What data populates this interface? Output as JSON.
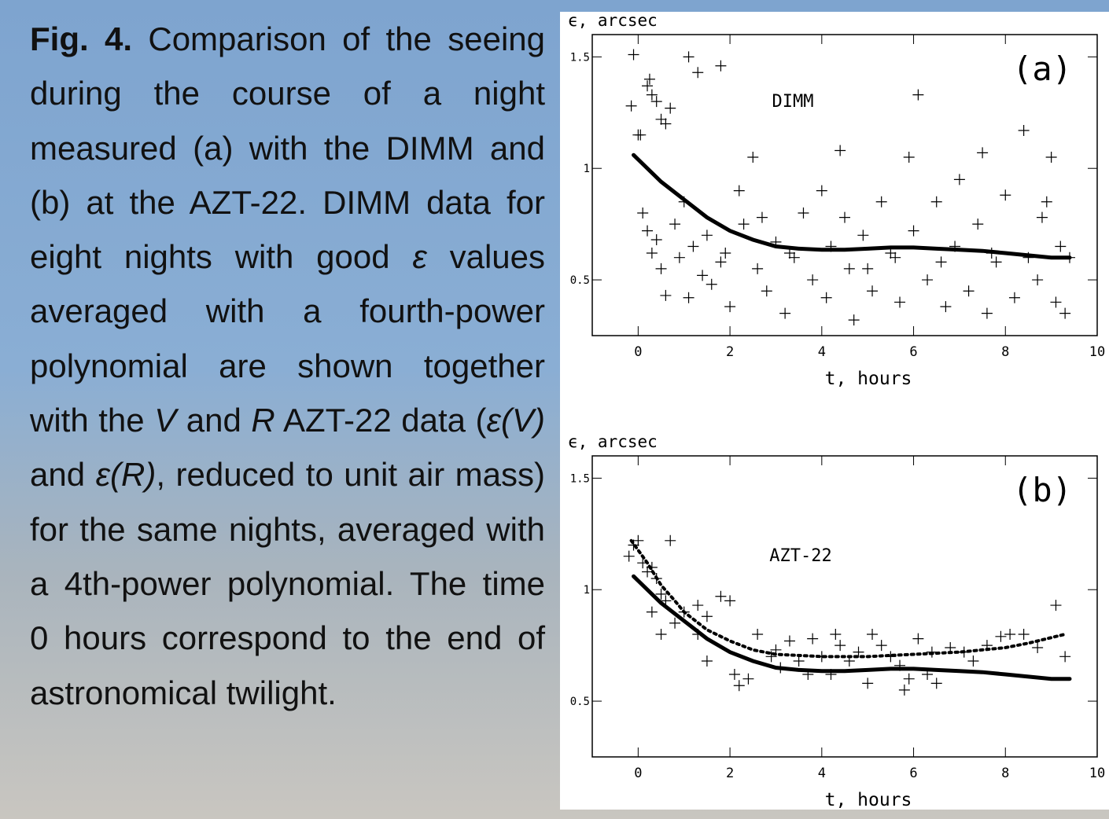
{
  "caption": [
    "Fig. 4.",
    " Comparison of the seeing during the course of a night measured (a) with the DIMM and (b) at the AZT-22. DIMM data for eight nights with good ",
    "ε",
    " values averaged with a fourth-power polynomial are shown together with the ",
    "V",
    " and ",
    "R",
    " AZT-22 data (",
    "ε(V)",
    " and ",
    "ε(R)",
    ", reduced to unit air mass) for the same nights, averaged with a 4th-power polynomial. The time 0 hours correspond to the end of astronomical twilight."
  ],
  "chart_data": [
    {
      "type": "scatter",
      "ylabel": "ϵ, arcsec",
      "xlabel": "t, hours",
      "panel_label": "(a)",
      "annotation": "DIMM",
      "xlim": [
        -1,
        10
      ],
      "ylim": [
        0.25,
        1.6
      ],
      "xticks": [
        0,
        2,
        4,
        6,
        8,
        10
      ],
      "yticks": [
        0.5,
        1,
        1.5
      ],
      "series": [
        {
          "marker": "plus",
          "color": "#000",
          "x": [
            -0.1,
            -0.15,
            0.05,
            0.2,
            0.25,
            0.3,
            0.4,
            0.5,
            0.6,
            0.7,
            1.1,
            1.3,
            1.8,
            0.1,
            0.2,
            0.3,
            0.4,
            0.5,
            0.6,
            0.8,
            0.9,
            1.0,
            1.1,
            1.2,
            1.4,
            1.5,
            1.6,
            1.8,
            2.0,
            2.2,
            2.3,
            2.5,
            2.6,
            2.8,
            3.0,
            3.2,
            3.4,
            3.6,
            3.8,
            4.0,
            4.1,
            4.2,
            4.4,
            4.6,
            4.7,
            4.9,
            5.1,
            5.3,
            5.5,
            5.7,
            5.9,
            6.0,
            6.1,
            6.3,
            6.5,
            6.7,
            6.9,
            7.0,
            7.2,
            7.4,
            7.5,
            7.6,
            7.8,
            8.0,
            8.2,
            8.4,
            8.5,
            8.7,
            8.8,
            9.0,
            9.1,
            9.2,
            9.3,
            9.4,
            5.0,
            3.3,
            2.7,
            7.7,
            6.6,
            1.9,
            0.0,
            8.9,
            4.5,
            5.6
          ],
          "values": [
            1.51,
            1.28,
            1.15,
            1.37,
            1.4,
            1.33,
            1.3,
            1.22,
            1.2,
            1.27,
            1.5,
            1.43,
            1.46,
            0.8,
            0.72,
            0.62,
            0.68,
            0.55,
            0.43,
            0.75,
            0.6,
            0.85,
            0.42,
            0.65,
            0.52,
            0.7,
            0.48,
            0.58,
            0.38,
            0.9,
            0.75,
            1.05,
            0.55,
            0.45,
            0.67,
            0.35,
            0.6,
            0.8,
            0.5,
            0.9,
            0.42,
            0.65,
            1.08,
            0.55,
            0.32,
            0.7,
            0.45,
            0.85,
            0.62,
            0.4,
            1.05,
            0.72,
            1.33,
            0.5,
            0.85,
            0.38,
            0.65,
            0.95,
            0.45,
            0.75,
            1.07,
            0.35,
            0.58,
            0.88,
            0.42,
            1.17,
            0.6,
            0.5,
            0.78,
            1.05,
            0.4,
            0.65,
            0.35,
            0.6,
            0.55,
            0.62,
            0.78,
            0.62,
            0.58,
            0.62,
            1.15,
            0.85,
            0.78,
            0.6
          ]
        },
        {
          "marker": "line",
          "style": "solid",
          "color": "#000",
          "x": [
            -0.1,
            0,
            0.5,
            1,
            1.5,
            2,
            2.5,
            3,
            3.5,
            4,
            4.5,
            5,
            5.5,
            6,
            6.5,
            7,
            7.5,
            8,
            8.5,
            9,
            9.4
          ],
          "values": [
            1.06,
            1.04,
            0.94,
            0.86,
            0.78,
            0.72,
            0.68,
            0.65,
            0.64,
            0.635,
            0.635,
            0.64,
            0.645,
            0.645,
            0.64,
            0.635,
            0.63,
            0.62,
            0.61,
            0.6,
            0.6
          ]
        }
      ]
    },
    {
      "type": "scatter",
      "ylabel": "ϵ, arcsec",
      "xlabel": "t, hours",
      "panel_label": "(b)",
      "annotation": "AZT-22",
      "xlim": [
        -1,
        10
      ],
      "ylim": [
        0.25,
        1.6
      ],
      "xticks": [
        0,
        2,
        4,
        6,
        8,
        10
      ],
      "yticks": [
        0.5,
        1,
        1.5
      ],
      "series": [
        {
          "marker": "plus",
          "color": "#000",
          "x": [
            -0.2,
            -0.1,
            0,
            0.1,
            0.2,
            0.3,
            0.4,
            0.5,
            0.6,
            0.7,
            0.3,
            0.5,
            0.8,
            1.0,
            1.3,
            1.3,
            1.5,
            1.5,
            1.8,
            2.0,
            2.1,
            2.2,
            2.4,
            2.6,
            3.0,
            3.1,
            3.3,
            3.5,
            3.7,
            3.8,
            4.0,
            4.2,
            4.4,
            4.6,
            4.8,
            5.0,
            5.1,
            5.3,
            5.5,
            5.7,
            5.8,
            5.9,
            6.1,
            6.3,
            6.5,
            6.8,
            7.1,
            7.3,
            7.6,
            7.9,
            8.1,
            8.4,
            8.7,
            9.1,
            9.3,
            6.4,
            4.3,
            2.9
          ],
          "values": [
            1.15,
            1.2,
            1.22,
            1.12,
            1.08,
            1.1,
            1.05,
            0.98,
            0.95,
            1.22,
            0.9,
            0.8,
            0.85,
            0.9,
            0.8,
            0.93,
            0.88,
            0.68,
            0.97,
            0.95,
            0.62,
            0.57,
            0.6,
            0.8,
            0.73,
            0.65,
            0.77,
            0.68,
            0.62,
            0.78,
            0.7,
            0.62,
            0.75,
            0.68,
            0.72,
            0.58,
            0.8,
            0.75,
            0.7,
            0.66,
            0.55,
            0.6,
            0.78,
            0.62,
            0.58,
            0.74,
            0.72,
            0.68,
            0.75,
            0.79,
            0.8,
            0.8,
            0.74,
            0.93,
            0.7,
            0.72,
            0.8,
            0.7
          ]
        },
        {
          "marker": "line",
          "style": "solid",
          "color": "#000",
          "x": [
            -0.1,
            0,
            0.5,
            1,
            1.5,
            2,
            2.5,
            3,
            3.5,
            4,
            4.5,
            5,
            5.5,
            6,
            6.5,
            7,
            7.5,
            8,
            8.5,
            9,
            9.4
          ],
          "values": [
            1.06,
            1.04,
            0.94,
            0.86,
            0.78,
            0.72,
            0.68,
            0.65,
            0.64,
            0.635,
            0.635,
            0.64,
            0.645,
            0.645,
            0.64,
            0.635,
            0.63,
            0.62,
            0.61,
            0.6,
            0.6
          ]
        },
        {
          "marker": "line",
          "style": "dotted",
          "color": "#000",
          "x": [
            -0.15,
            0.2,
            0.5,
            0.8,
            1.0,
            1.5,
            2.0,
            2.5,
            3,
            4,
            5,
            6,
            7,
            8,
            8.5,
            9.3
          ],
          "values": [
            1.22,
            1.12,
            1.02,
            0.95,
            0.9,
            0.82,
            0.77,
            0.73,
            0.71,
            0.7,
            0.7,
            0.71,
            0.72,
            0.74,
            0.76,
            0.8
          ]
        }
      ]
    }
  ]
}
